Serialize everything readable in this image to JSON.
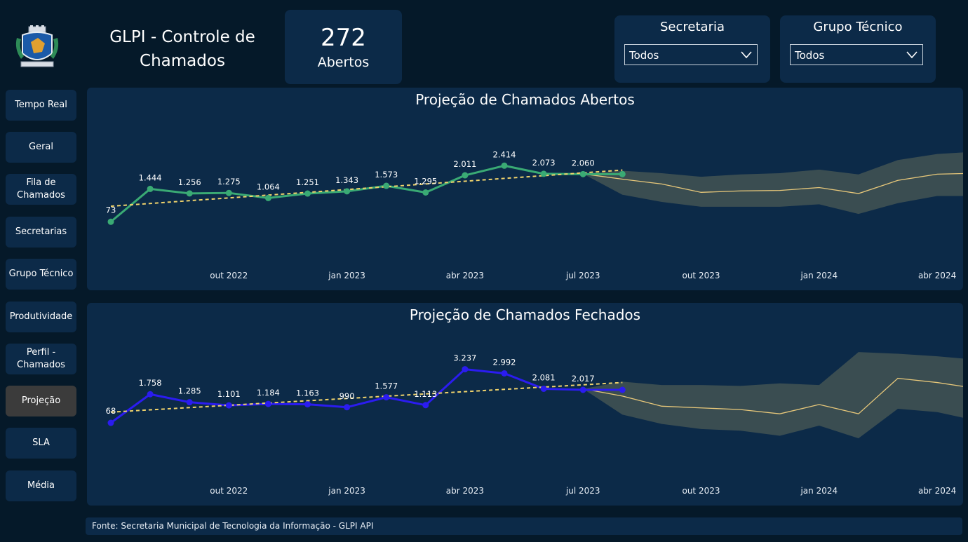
{
  "header": {
    "title": "GLPI - Controle de Chamados",
    "kpi_value": "272",
    "kpi_label": "Abertos"
  },
  "filters": [
    {
      "title": "Secretaria",
      "value": "Todos"
    },
    {
      "title": "Grupo Técnico",
      "value": "Todos"
    }
  ],
  "nav": [
    {
      "label": "Tempo Real",
      "active": false
    },
    {
      "label": "Geral",
      "active": false
    },
    {
      "label": "Fila de Chamados",
      "active": false
    },
    {
      "label": "Secretarias",
      "active": false
    },
    {
      "label": "Grupo Técnico",
      "active": false
    },
    {
      "label": "Produtividade",
      "active": false
    },
    {
      "label": "Perfil - Chamados",
      "active": false
    },
    {
      "label": "Projeção",
      "active": true
    },
    {
      "label": "SLA",
      "active": false
    },
    {
      "label": "Média",
      "active": false
    }
  ],
  "footer": "Fonte: Secretaria Municipal de Tecnologia da Informação - GLPI API",
  "colors": {
    "background": "#051929",
    "panel": "#0c2a48",
    "active_nav": "#3b3b3b",
    "abertos_line": "#3aaa74",
    "fechados_line": "#2b1cf0",
    "trend": "#f0d36c",
    "forecast_line": "#e8c87a",
    "forecast_band": "#3d4f52"
  },
  "chart_data": [
    {
      "type": "line",
      "title": "Projeção de Chamados Abertos",
      "x_tick_labels": [
        "out 2022",
        "jan 2023",
        "abr 2023",
        "jul 2023",
        "out 2023",
        "jan 2024",
        "abr 2024"
      ],
      "x_tick_months": [
        3,
        6,
        9,
        12,
        15,
        18,
        21
      ],
      "series": [
        {
          "x_months": [
            0,
            1,
            2,
            3,
            4,
            5,
            6,
            7,
            8,
            9,
            10,
            11,
            12,
            13
          ],
          "values": [
            73,
            1444,
            1256,
            1275,
            1064,
            1251,
            1343,
            1573,
            1295,
            2011,
            2414,
            2073,
            2060,
            2060
          ],
          "labels": [
            "73",
            "1.444",
            "1.256",
            "1.275",
            "1.064",
            "1.251",
            "1.343",
            "1.573",
            "1.295",
            "2.011",
            "2.414",
            "2.073",
            "2.060",
            null
          ]
        }
      ],
      "trend": {
        "from": [
          0,
          720
        ],
        "to": [
          13,
          2230
        ]
      },
      "forecast": {
        "x_months": [
          12,
          13,
          14,
          15,
          16,
          17,
          18,
          19,
          20,
          21,
          22
        ],
        "mean": [
          2073,
          1850,
          1650,
          1300,
          1360,
          1380,
          1500,
          1250,
          1800,
          2060,
          2100
        ],
        "upper": [
          2073,
          2200,
          2100,
          1950,
          2050,
          2100,
          2250,
          2050,
          2650,
          2900,
          3000
        ],
        "lower": [
          2073,
          1200,
          900,
          700,
          700,
          700,
          800,
          400,
          850,
          1150,
          1150
        ]
      },
      "ylim": [
        -1500,
        4500
      ]
    },
    {
      "type": "line",
      "title": "Projeção de Chamados Fechados",
      "x_tick_labels": [
        "out 2022",
        "jan 2023",
        "abr 2023",
        "jul 2023",
        "out 2023",
        "jan 2024",
        "abr 2024"
      ],
      "x_tick_months": [
        3,
        6,
        9,
        12,
        15,
        18,
        21
      ],
      "series": [
        {
          "x_months": [
            0,
            1,
            2,
            3,
            4,
            5,
            6,
            7,
            8,
            9,
            10,
            11,
            12,
            13
          ],
          "values": [
            68,
            1758,
            1285,
            1101,
            1184,
            1163,
            990,
            1577,
            1113,
            3237,
            2992,
            2081,
            2017,
            2017
          ],
          "labels": [
            "68",
            "1.758",
            "1.285",
            "1.101",
            "1.184",
            "1.163",
            "990",
            "1.577",
            "1.113",
            "3.237",
            "2.992",
            "2.081",
            "2.017",
            null
          ]
        }
      ],
      "trend": {
        "from": [
          0,
          700
        ],
        "to": [
          13,
          2450
        ]
      },
      "forecast": {
        "x_months": [
          12,
          13,
          14,
          15,
          16,
          17,
          18,
          19,
          20,
          21,
          22
        ],
        "mean": [
          2081,
          1650,
          1050,
          950,
          850,
          600,
          1150,
          600,
          2700,
          2450,
          2100
        ],
        "upper": [
          2081,
          2500,
          2300,
          2300,
          2250,
          2400,
          2300,
          4250,
          4150,
          4000,
          3800
        ],
        "lower": [
          2081,
          550,
          0,
          -300,
          -400,
          -700,
          -100,
          -850,
          900,
          700,
          200
        ]
      },
      "ylim": [
        -3000,
        5500
      ]
    }
  ]
}
